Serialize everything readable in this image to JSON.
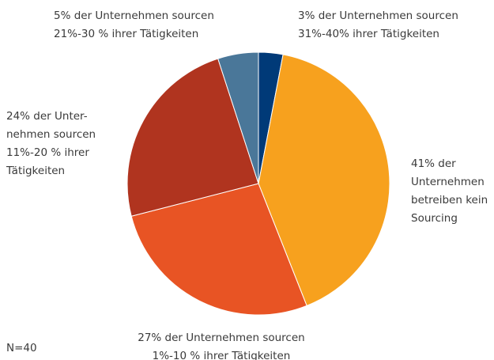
{
  "chart_data": {
    "type": "pie",
    "categories": [
      [
        "3% der Unternehmen sourcen",
        "31%-40% ihrer Tätigkeiten"
      ],
      [
        "41% der",
        "Unternehmen",
        "betreiben kein",
        "Sourcing"
      ],
      [
        "27% der Unternehmen sourcen",
        "1%-10 % ihrer Tätigkeiten"
      ],
      [
        "24% der Unter-",
        "nehmen sourcen",
        "11%-20 % ihrer",
        "Tätigkeiten"
      ],
      [
        "5% der Unternehmen sourcen",
        "21%-30 % ihrer Tätigkeiten"
      ]
    ],
    "values": [
      3,
      41,
      27,
      24,
      5
    ],
    "colors": [
      "#003a78",
      "#f7a11e",
      "#e85424",
      "#b0341f",
      "#4a7799"
    ],
    "note": "N=40"
  }
}
